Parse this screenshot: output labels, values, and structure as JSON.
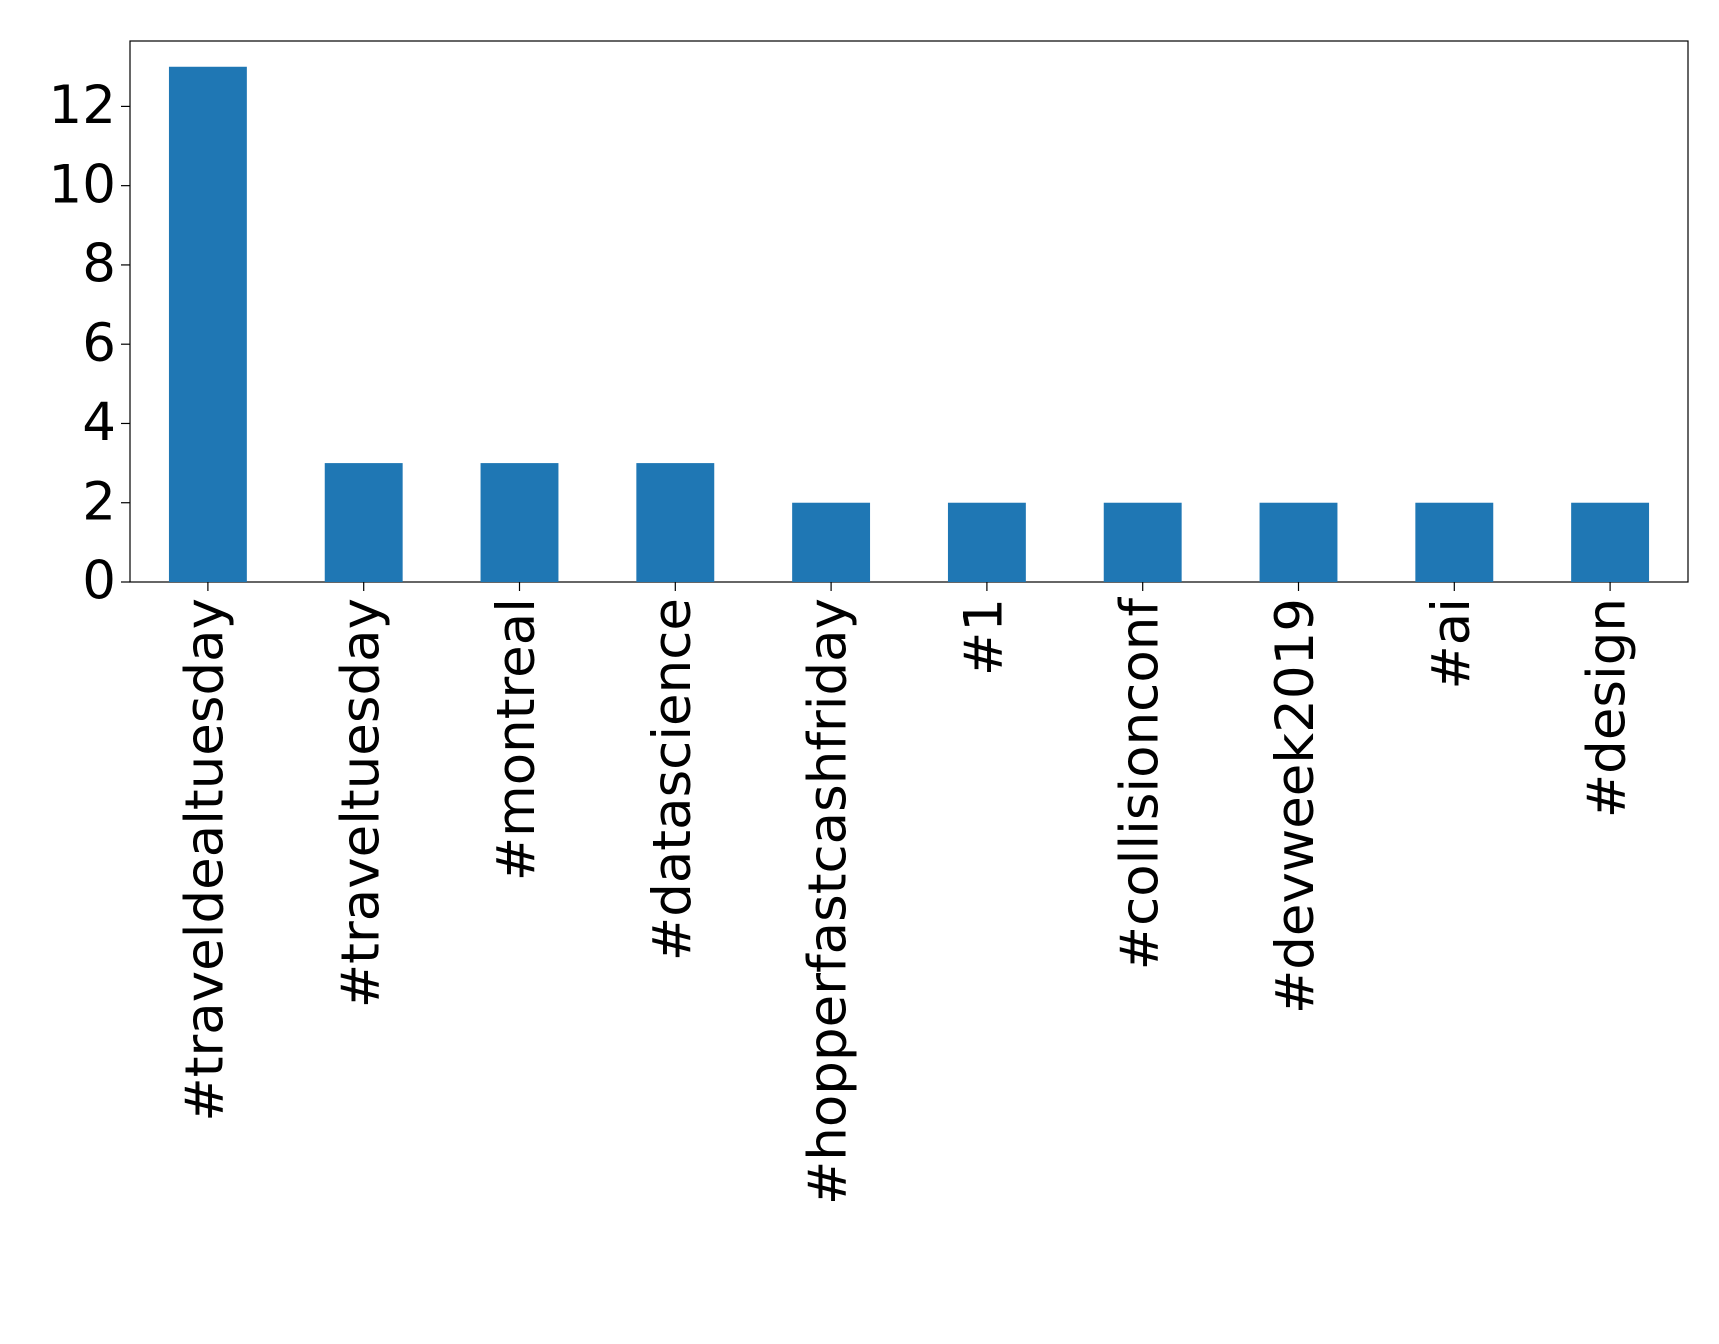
{
  "chart_data": {
    "type": "bar",
    "categories": [
      "#traveldealtuesday",
      "#traveltuesday",
      "#montreal",
      "#datascience",
      "#hopperfastcashfriday",
      "#1",
      "#collisionconf",
      "#devweek2019",
      "#ai",
      "#design"
    ],
    "values": [
      13,
      3,
      3,
      3,
      2,
      2,
      2,
      2,
      2,
      2
    ],
    "color": "#1f77b4",
    "ylim": [
      0,
      13.65
    ],
    "yticks": [
      0,
      2,
      4,
      6,
      8,
      10,
      12
    ],
    "grid": false
  }
}
